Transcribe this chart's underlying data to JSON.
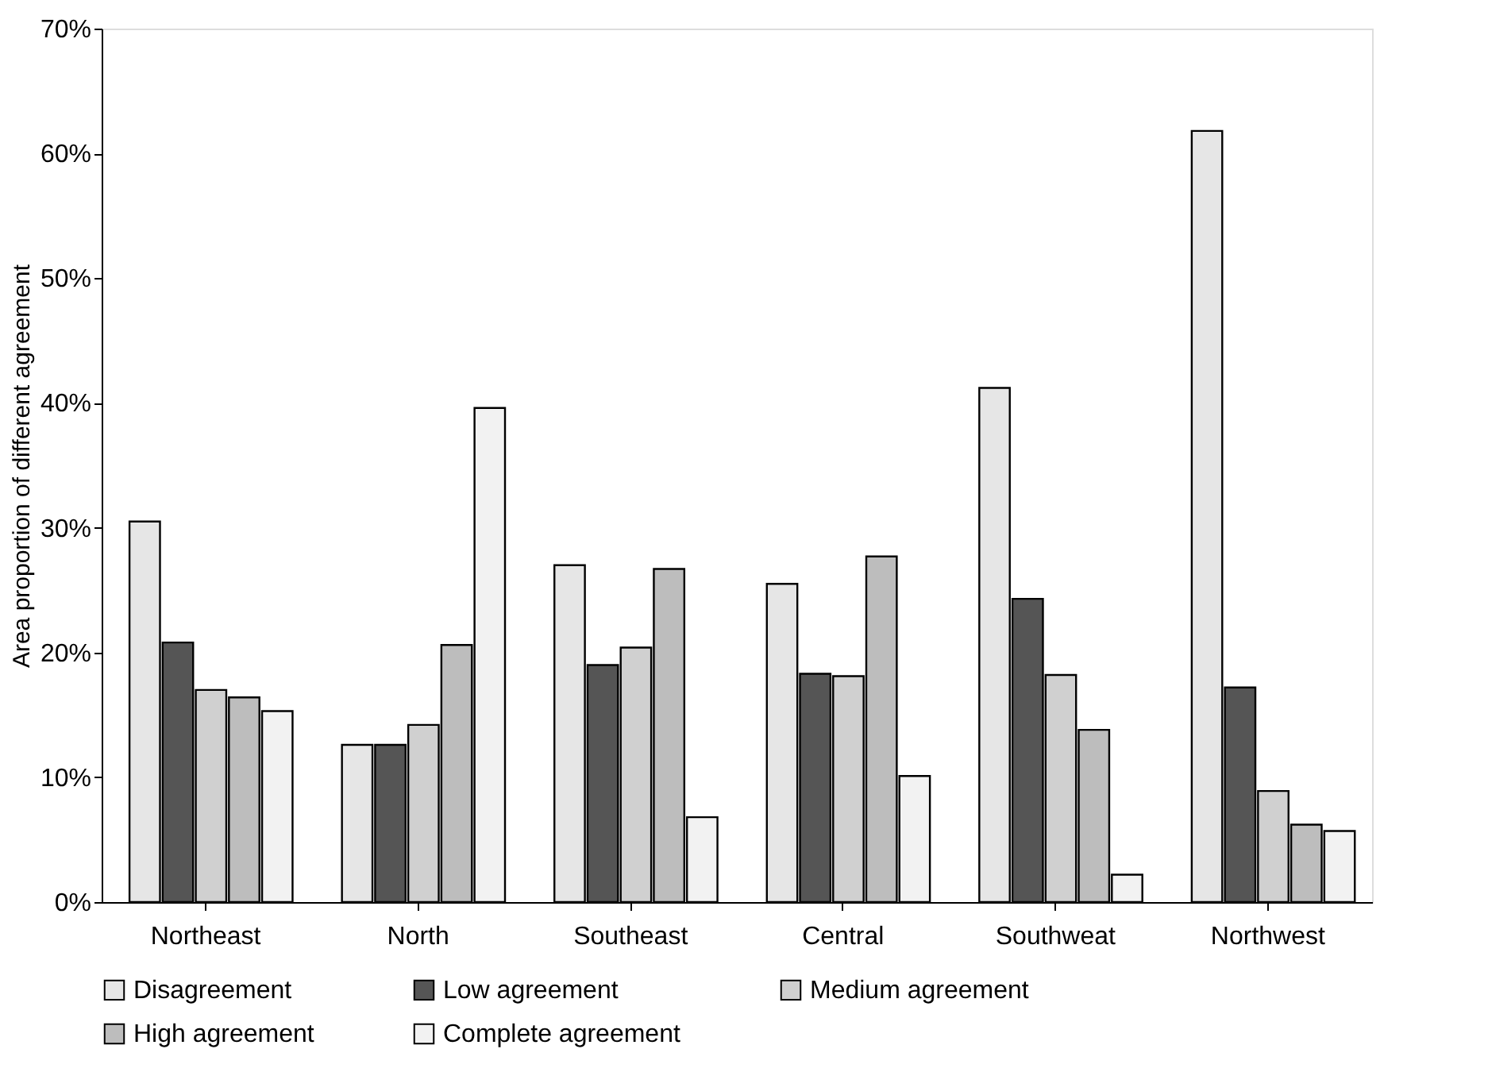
{
  "chart_data": {
    "type": "bar",
    "ylabel": "Area proportion of different agreement",
    "categories": [
      "Northeast",
      "North",
      "Southeast",
      "Central",
      "Southweat",
      "Northwest"
    ],
    "series": [
      {
        "name": "Disagreement",
        "color": "#e6e6e6",
        "values": [
          30.5,
          12.6,
          27.0,
          25.5,
          41.2,
          61.8
        ]
      },
      {
        "name": "Low agreement",
        "color": "#555555",
        "values": [
          20.8,
          12.6,
          19.0,
          18.3,
          24.3,
          17.2
        ]
      },
      {
        "name": "Medium agreement",
        "color": "#d0d0d0",
        "values": [
          17.0,
          14.2,
          20.4,
          18.1,
          18.2,
          8.9
        ]
      },
      {
        "name": "High agreement",
        "color": "#bdbdbd",
        "values": [
          16.4,
          20.6,
          26.7,
          27.7,
          13.8,
          6.2
        ]
      },
      {
        "name": "Complete agreement",
        "color": "#f2f2f2",
        "values": [
          15.3,
          39.6,
          6.8,
          10.1,
          2.2,
          5.7
        ]
      }
    ],
    "ylim": [
      0,
      70
    ],
    "yticks": [
      {
        "value": 0,
        "label": "0%"
      },
      {
        "value": 10,
        "label": "10%"
      },
      {
        "value": 20,
        "label": "20%"
      },
      {
        "value": 30,
        "label": "30%"
      },
      {
        "value": 40,
        "label": "40%"
      },
      {
        "value": 50,
        "label": "50%"
      },
      {
        "value": 60,
        "label": "60%"
      },
      {
        "value": 70,
        "label": "70%"
      }
    ],
    "grid": false,
    "legend": "bottom"
  }
}
